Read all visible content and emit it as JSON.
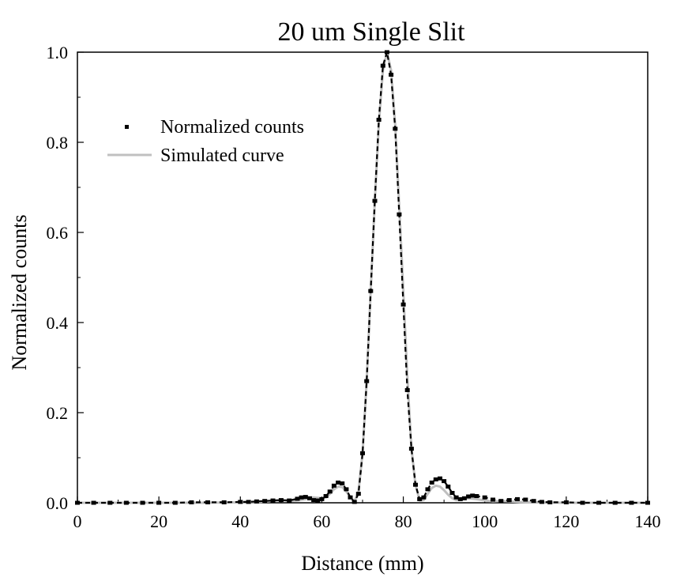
{
  "chart_data": {
    "type": "scatter",
    "title": "20 um Single Slit",
    "xlabel": "Distance (mm)",
    "ylabel": "Normalized counts",
    "xlim": [
      0,
      140
    ],
    "ylim": [
      0,
      1.0
    ],
    "xticks": [
      0,
      20,
      40,
      60,
      80,
      100,
      120,
      140
    ],
    "xtick_labels": [
      "0",
      "20",
      "40",
      "60",
      "80",
      "100",
      "120",
      "140"
    ],
    "yticks": [
      0,
      0.2,
      0.4,
      0.6,
      0.8,
      1.0
    ],
    "ytick_labels": [
      "0.0",
      "0.2",
      "0.4",
      "0.6",
      "0.8",
      "1.0"
    ],
    "grid": false,
    "legend_position": "upper-left",
    "colors": {
      "measured": "#000000",
      "simulated": "#c0c0c0"
    },
    "series": [
      {
        "name": "Normalized counts",
        "style": "points",
        "x": [
          0,
          4,
          8,
          12,
          16,
          20,
          24,
          28,
          32,
          36,
          40,
          42,
          44,
          46,
          48,
          50,
          52,
          54,
          55,
          56,
          57,
          58,
          59,
          60,
          61,
          62,
          63,
          64,
          65,
          66,
          67,
          68,
          69,
          70,
          71,
          72,
          73,
          74,
          75,
          76,
          77,
          78,
          79,
          80,
          81,
          82,
          83,
          84,
          85,
          86,
          87,
          88,
          89,
          90,
          91,
          92,
          93,
          94,
          95,
          96,
          97,
          98,
          100,
          102,
          104,
          106,
          108,
          110,
          112,
          114,
          116,
          120,
          124,
          128,
          132,
          136,
          140
        ],
        "y": [
          0,
          0,
          0,
          0,
          0,
          0,
          0,
          0.001,
          0.001,
          0.001,
          0.002,
          0.002,
          0.003,
          0.004,
          0.005,
          0.006,
          0.005,
          0.009,
          0.012,
          0.013,
          0.01,
          0.006,
          0.005,
          0.008,
          0.015,
          0.025,
          0.038,
          0.045,
          0.043,
          0.03,
          0.012,
          0.002,
          0.02,
          0.11,
          0.27,
          0.47,
          0.67,
          0.85,
          0.97,
          1.0,
          0.95,
          0.83,
          0.64,
          0.44,
          0.25,
          0.12,
          0.04,
          0.008,
          0.012,
          0.03,
          0.045,
          0.052,
          0.054,
          0.048,
          0.036,
          0.022,
          0.012,
          0.008,
          0.01,
          0.014,
          0.016,
          0.015,
          0.012,
          0.007,
          0.004,
          0.006,
          0.008,
          0.007,
          0.004,
          0.002,
          0.001,
          0.001,
          0,
          0,
          0,
          0,
          0
        ]
      },
      {
        "name": "Simulated curve",
        "style": "line",
        "x": [
          0,
          10,
          20,
          30,
          40,
          45,
          48,
          50,
          52,
          54,
          56,
          57,
          58,
          59,
          60,
          61,
          62,
          63,
          64,
          65,
          66,
          67,
          68,
          69,
          70,
          71,
          72,
          73,
          74,
          75,
          76,
          77,
          78,
          79,
          80,
          81,
          82,
          83,
          84,
          85,
          86,
          87,
          88,
          89,
          90,
          91,
          92,
          93,
          94,
          95,
          96,
          98,
          100,
          102,
          104,
          106,
          110,
          120,
          130,
          140
        ],
        "y": [
          0,
          0,
          0,
          0,
          0.001,
          0.002,
          0.004,
          0.006,
          0.004,
          0.005,
          0.008,
          0.011,
          0.012,
          0.011,
          0.01,
          0.012,
          0.02,
          0.03,
          0.036,
          0.035,
          0.025,
          0.012,
          0.003,
          0.025,
          0.11,
          0.27,
          0.47,
          0.67,
          0.84,
          0.96,
          1.0,
          0.96,
          0.84,
          0.66,
          0.47,
          0.28,
          0.12,
          0.04,
          0.005,
          0.006,
          0.02,
          0.033,
          0.038,
          0.036,
          0.028,
          0.018,
          0.01,
          0.006,
          0.007,
          0.009,
          0.01,
          0.008,
          0.005,
          0.003,
          0.004,
          0.003,
          0.001,
          0,
          0,
          0
        ]
      }
    ]
  }
}
